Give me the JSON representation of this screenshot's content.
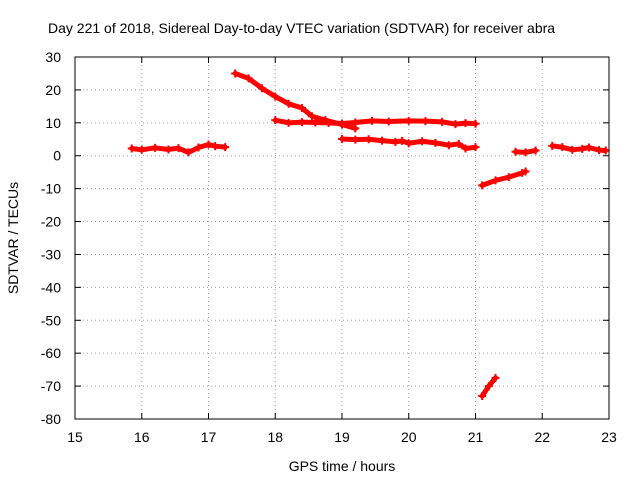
{
  "chart_data": {
    "type": "scatter",
    "title": "Day 221 of 2018, Sidereal Day-to-day VTEC variation (SDTVAR) for receiver abra",
    "xlabel": "GPS time / hours",
    "ylabel": "SDTVAR / TECUs",
    "xlim": [
      15,
      23
    ],
    "ylim": [
      -80,
      30
    ],
    "xticks": [
      15,
      16,
      17,
      18,
      19,
      20,
      21,
      22,
      23
    ],
    "yticks": [
      30,
      20,
      10,
      0,
      -10,
      -20,
      -30,
      -40,
      -50,
      -60,
      -70,
      -80
    ],
    "grid": true,
    "marker": "plus",
    "color": "#ff0000",
    "series": [
      {
        "points": [
          [
            15.85,
            2.2
          ],
          [
            16.0,
            1.8
          ],
          [
            16.2,
            2.4
          ],
          [
            16.4,
            1.9
          ],
          [
            16.55,
            2.3
          ],
          [
            16.7,
            1.0
          ],
          [
            16.85,
            2.5
          ],
          [
            17.0,
            3.4
          ],
          [
            17.1,
            2.9
          ],
          [
            17.25,
            2.6
          ]
        ]
      },
      {
        "points": [
          [
            17.4,
            25.0
          ],
          [
            17.6,
            23.5
          ],
          [
            17.8,
            20.5
          ],
          [
            18.0,
            18.0
          ],
          [
            18.2,
            15.8
          ],
          [
            18.4,
            14.5
          ],
          [
            18.55,
            12.0
          ],
          [
            18.75,
            10.8
          ],
          [
            19.0,
            9.5
          ],
          [
            19.2,
            8.3
          ]
        ]
      },
      {
        "points": [
          [
            18.0,
            10.8
          ],
          [
            18.2,
            10.0
          ],
          [
            18.4,
            10.2
          ],
          [
            18.6,
            10.1
          ],
          [
            18.8,
            10.0
          ],
          [
            19.0,
            9.8
          ],
          [
            19.2,
            10.1
          ],
          [
            19.45,
            10.6
          ],
          [
            19.7,
            10.4
          ],
          [
            20.0,
            10.6
          ],
          [
            20.25,
            10.5
          ],
          [
            20.5,
            10.3
          ],
          [
            20.7,
            9.6
          ],
          [
            20.85,
            9.9
          ],
          [
            21.0,
            9.7
          ]
        ]
      },
      {
        "points": [
          [
            19.0,
            5.1
          ],
          [
            19.2,
            4.9
          ],
          [
            19.4,
            5.0
          ],
          [
            19.6,
            4.6
          ],
          [
            19.8,
            4.2
          ],
          [
            19.9,
            4.5
          ],
          [
            20.0,
            3.8
          ],
          [
            20.2,
            4.4
          ],
          [
            20.4,
            3.9
          ],
          [
            20.6,
            3.2
          ],
          [
            20.75,
            3.6
          ],
          [
            20.85,
            2.2
          ],
          [
            21.0,
            2.6
          ]
        ]
      },
      {
        "points": [
          [
            21.1,
            -73.0
          ],
          [
            21.2,
            -70.0
          ],
          [
            21.3,
            -67.5
          ]
        ]
      },
      {
        "points": [
          [
            21.1,
            -9.0
          ],
          [
            21.3,
            -7.5
          ],
          [
            21.5,
            -6.5
          ],
          [
            21.7,
            -5.2
          ],
          [
            21.75,
            -4.8
          ]
        ]
      },
      {
        "points": [
          [
            21.6,
            1.2
          ],
          [
            21.75,
            1.0
          ],
          [
            21.9,
            1.6
          ]
        ]
      },
      {
        "points": [
          [
            22.15,
            3.0
          ],
          [
            22.3,
            2.6
          ],
          [
            22.45,
            1.8
          ],
          [
            22.6,
            2.1
          ],
          [
            22.7,
            2.5
          ],
          [
            22.85,
            1.7
          ],
          [
            22.95,
            1.6
          ]
        ]
      }
    ]
  }
}
